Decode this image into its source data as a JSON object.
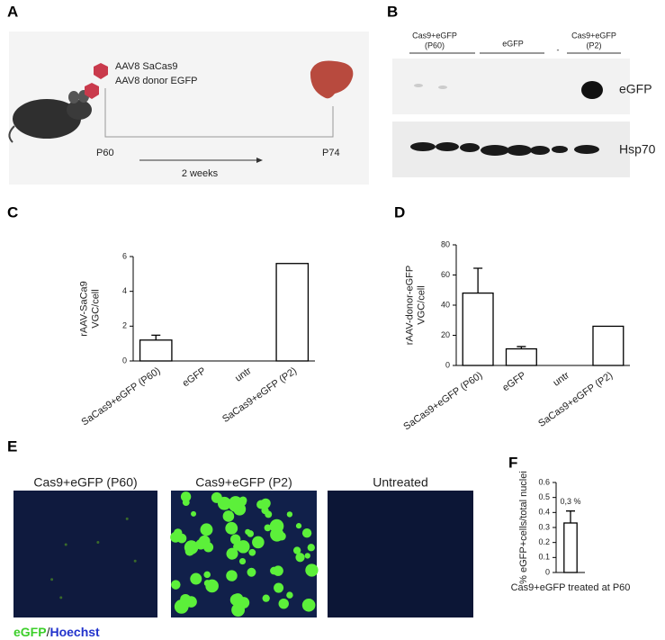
{
  "panels": {
    "a": "A",
    "b": "B",
    "c": "C",
    "d": "D",
    "e": "E",
    "f": "F"
  },
  "schematic": {
    "vectors": [
      "AAV8 SaCas9",
      "AAV8 donor EGFP"
    ],
    "start": "P60",
    "end": "P74",
    "duration": "2 weeks"
  },
  "blot": {
    "lanes": [
      [
        "Cas9+eGFP",
        "(P60)"
      ],
      [
        "eGFP"
      ],
      [
        "-"
      ],
      [
        "Cas9+eGFP",
        "(P2)"
      ]
    ],
    "bands": [
      "eGFP",
      "Hsp70"
    ]
  },
  "images": {
    "titles": [
      "Cas9+eGFP (P60)",
      "Cas9+eGFP (P2)",
      "Untreated"
    ],
    "stain": [
      "eGFP",
      "/",
      "Hoechst"
    ]
  },
  "chart_data": [
    {
      "type": "bar",
      "y_label": [
        "rAAV-SaCa9",
        "VGC/cell"
      ],
      "categories": [
        "SaCas9+eGFP (P60)",
        "eGFP",
        "untr",
        "SaCas9+eGFP (P2)"
      ],
      "values": [
        1.2,
        0,
        0,
        5.6
      ],
      "errors": [
        0.28,
        null,
        null,
        null
      ],
      "ylim": [
        0,
        6
      ],
      "yticks": [
        0,
        2,
        4,
        6
      ],
      "color": "#ffffff"
    },
    {
      "type": "bar",
      "y_label": [
        "rAAV-donor-eGFP",
        "VGC/cell"
      ],
      "categories": [
        "SaCas9+eGFP (P60)",
        "eGFP",
        "untr",
        "SaCas9+eGFP (P2)"
      ],
      "values": [
        48,
        11,
        0,
        26
      ],
      "errors": [
        16.5,
        1.5,
        null,
        null
      ],
      "ylim": [
        0,
        80
      ],
      "yticks": [
        0,
        20,
        40,
        60,
        80
      ],
      "color": "#ffffff"
    },
    {
      "type": "bar",
      "y_label": [
        "% eGFP+cells/total nuclei"
      ],
      "x_label": "Cas9+eGFP treated at P60",
      "categories": [
        null
      ],
      "values": [
        0.33
      ],
      "errors": [
        0.08
      ],
      "value_labels": [
        "0,3 %"
      ],
      "ylim": [
        0,
        0.6
      ],
      "yticks": [
        0,
        0.1,
        0.2,
        0.3,
        0.4,
        0.5,
        0.6
      ],
      "color": "#ffffff"
    }
  ]
}
